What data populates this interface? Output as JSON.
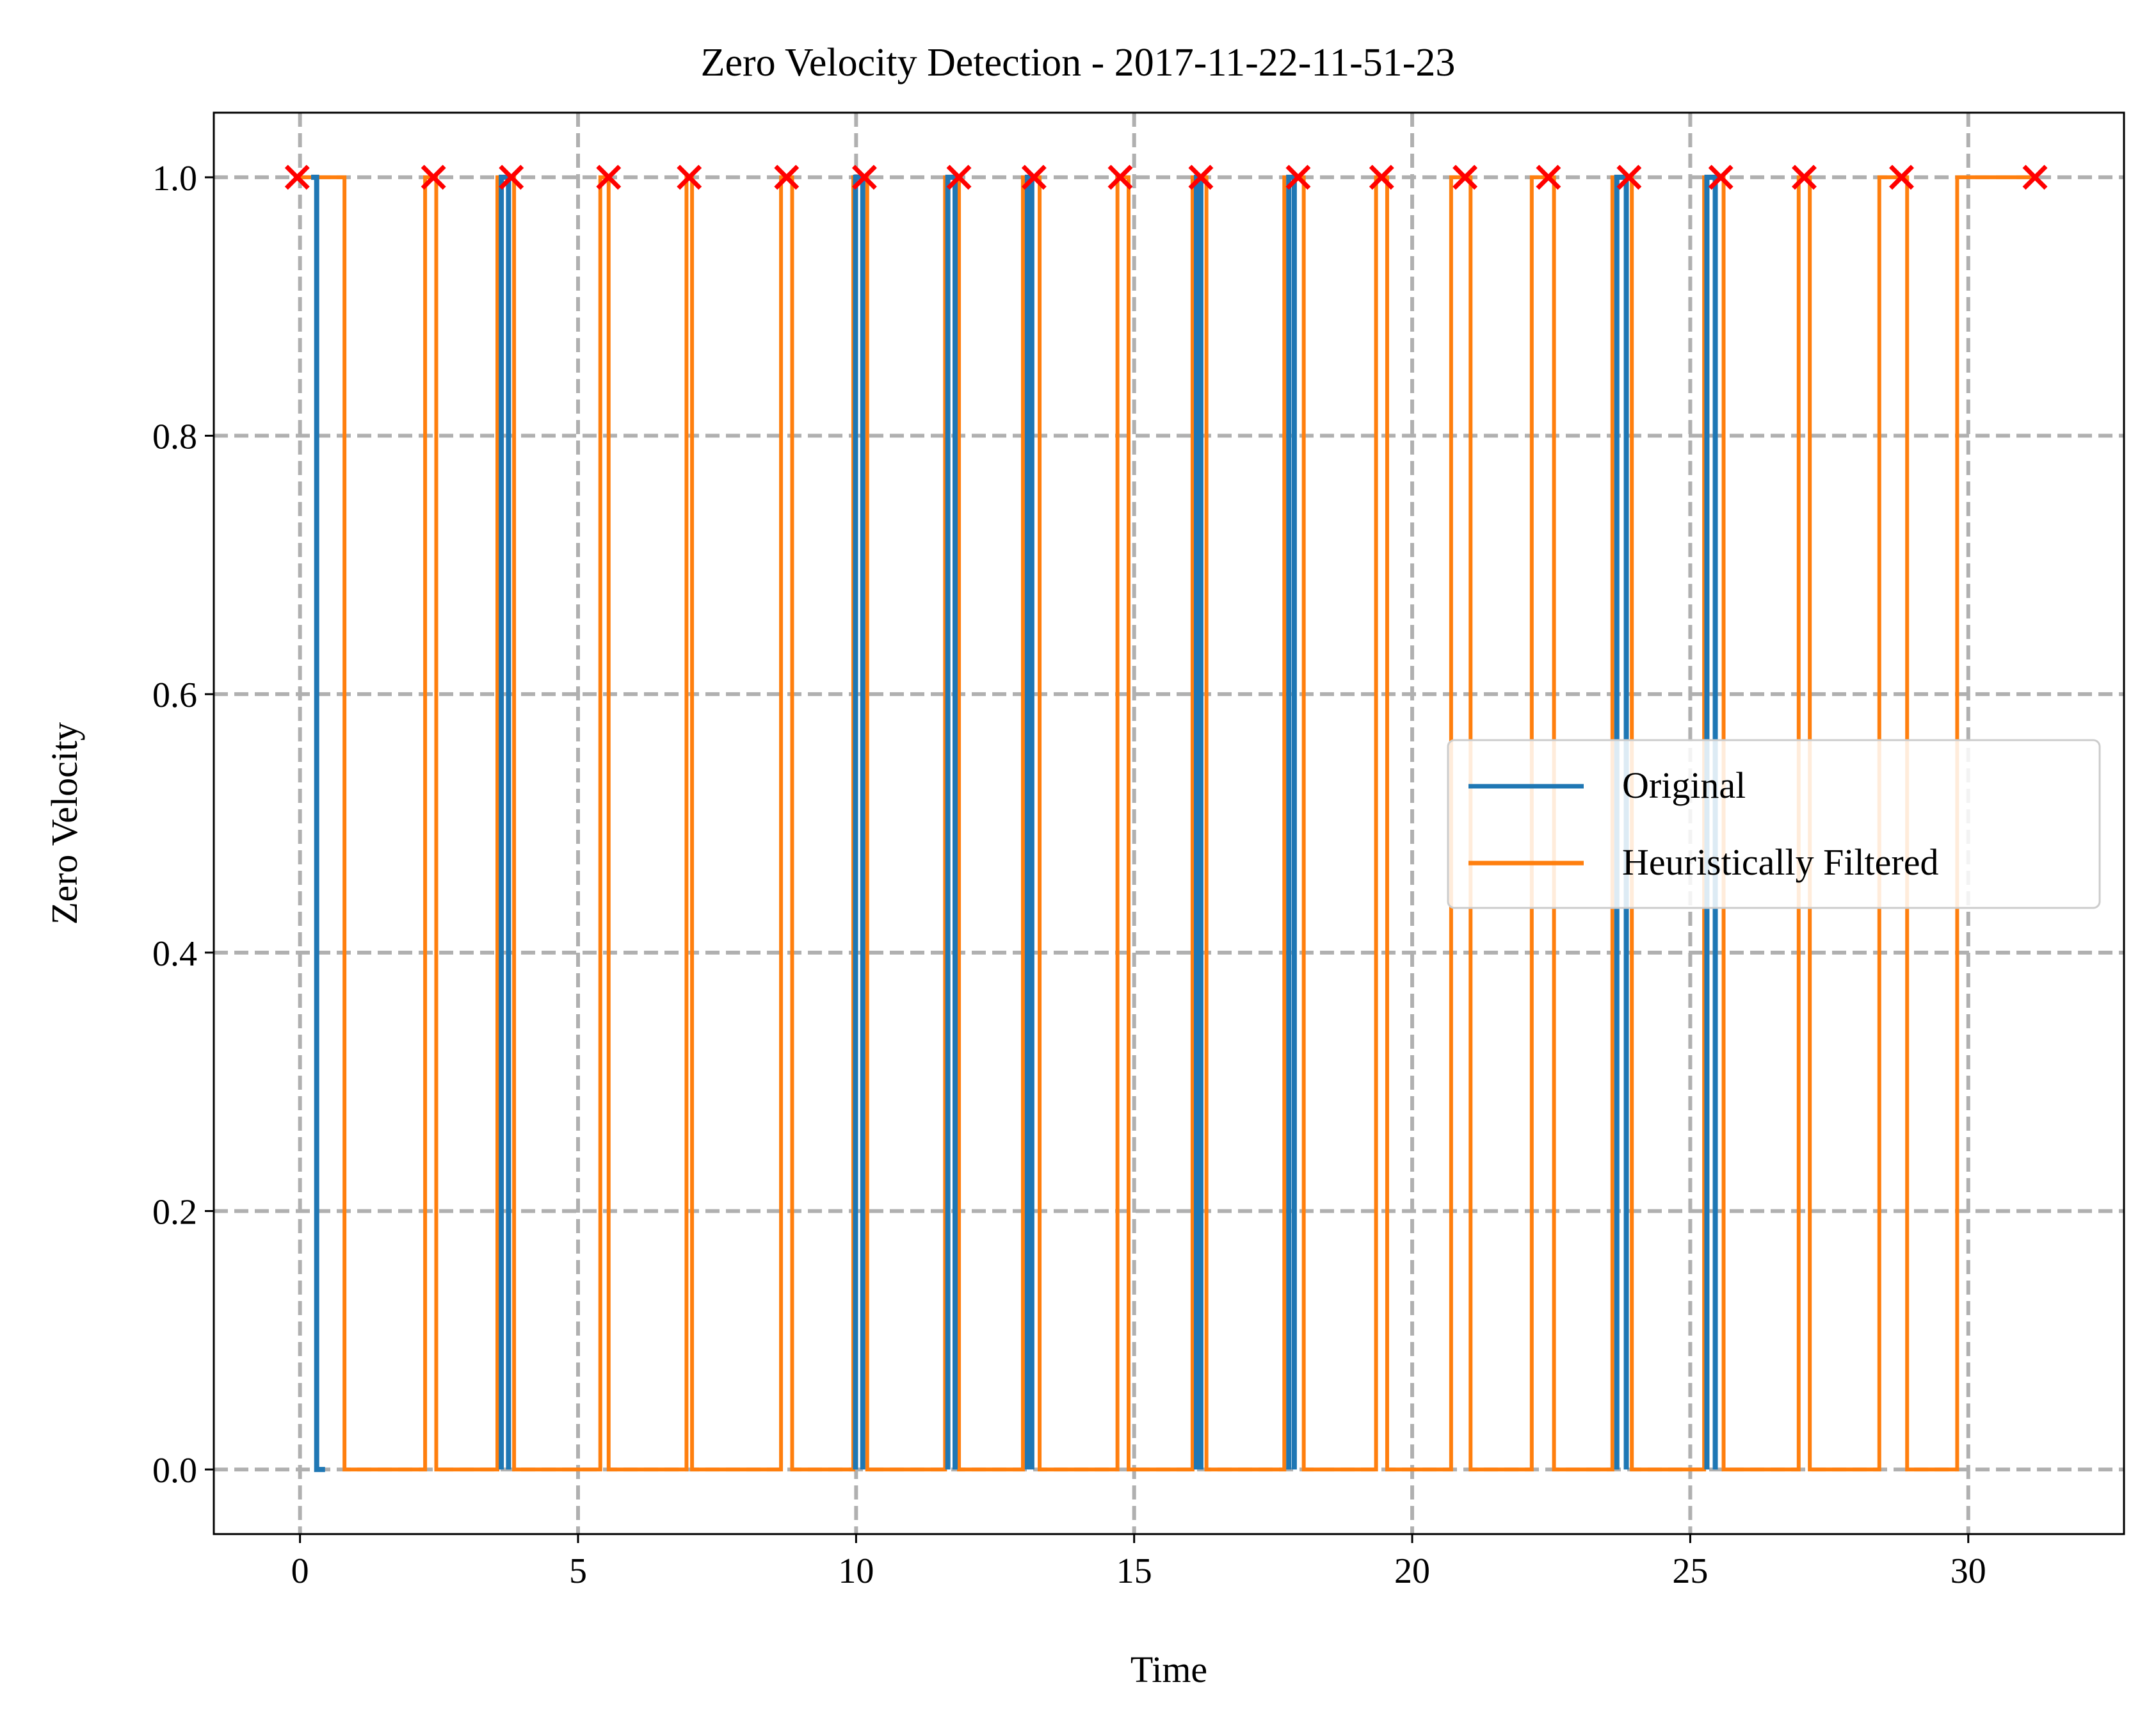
{
  "chart_data": {
    "type": "line",
    "title": "Zero Velocity Detection - 2017-11-22-11-51-23",
    "xlabel": "Time",
    "ylabel": "Zero Velocity",
    "xlim": [
      -1.55,
      32.8
    ],
    "ylim": [
      -0.05,
      1.05
    ],
    "xticks": [
      0,
      5,
      10,
      15,
      20,
      25,
      30
    ],
    "xtick_labels": [
      "0",
      "5",
      "10",
      "15",
      "20",
      "25",
      "30"
    ],
    "yticks": [
      0.0,
      0.2,
      0.4,
      0.6,
      0.8,
      1.0
    ],
    "ytick_labels": [
      "0.0",
      "0.2",
      "0.4",
      "0.6",
      "0.8",
      "1.0"
    ],
    "grid": true,
    "grid_style": "dashed",
    "legend_position": "center-right",
    "colors": {
      "original": "#1f77b4",
      "filtered": "#ff7f0e",
      "markers": "#ff0000",
      "grid": "#b0b0b0"
    },
    "series": [
      {
        "name": "Original",
        "step": true,
        "segments": [
          [
            [
              0.2,
              1
            ],
            [
              0.3,
              1
            ],
            [
              0.3,
              0
            ],
            [
              0.45,
              0
            ]
          ],
          [
            [
              3.62,
              0
            ],
            [
              3.62,
              1
            ],
            [
              3.75,
              1
            ],
            [
              3.75,
              0
            ]
          ],
          [
            [
              9.99,
              0
            ],
            [
              9.99,
              1
            ],
            [
              10.12,
              1
            ],
            [
              10.12,
              0
            ]
          ],
          [
            [
              11.65,
              0
            ],
            [
              11.65,
              1
            ],
            [
              11.78,
              1
            ],
            [
              11.78,
              0
            ]
          ],
          [
            [
              13.08,
              0
            ],
            [
              13.08,
              1
            ],
            [
              13.16,
              1
            ],
            [
              13.16,
              0
            ]
          ],
          [
            [
              16.12,
              0
            ],
            [
              16.12,
              1
            ],
            [
              16.2,
              1
            ],
            [
              16.2,
              0
            ]
          ],
          [
            [
              17.78,
              0
            ],
            [
              17.78,
              1
            ],
            [
              17.88,
              1
            ],
            [
              17.88,
              0
            ]
          ],
          [
            [
              23.68,
              0
            ],
            [
              23.68,
              1
            ],
            [
              23.85,
              1
            ],
            [
              23.85,
              0
            ]
          ],
          [
            [
              25.3,
              0
            ],
            [
              25.3,
              1
            ],
            [
              25.45,
              1
            ],
            [
              25.45,
              0
            ]
          ]
        ]
      },
      {
        "name": "Heuristically Filtered",
        "step": true,
        "pulses": [
          [
            0.0,
            0.8
          ],
          [
            2.25,
            2.45
          ],
          [
            3.55,
            3.85
          ],
          [
            5.4,
            5.55
          ],
          [
            6.95,
            7.05
          ],
          [
            8.65,
            8.85
          ],
          [
            9.95,
            10.2
          ],
          [
            11.6,
            11.85
          ],
          [
            13.0,
            13.3
          ],
          [
            14.7,
            14.9
          ],
          [
            16.05,
            16.3
          ],
          [
            17.7,
            18.05
          ],
          [
            19.35,
            19.55
          ],
          [
            20.7,
            21.05
          ],
          [
            22.15,
            22.55
          ],
          [
            23.6,
            23.95
          ],
          [
            25.25,
            25.6
          ],
          [
            26.95,
            27.15
          ],
          [
            28.4,
            28.9
          ],
          [
            29.8,
            31.2
          ]
        ]
      },
      {
        "name": "Step markers",
        "marker": "x",
        "x": [
          -0.05,
          2.4,
          3.8,
          5.55,
          7.0,
          8.75,
          10.15,
          11.85,
          13.2,
          14.75,
          16.2,
          17.95,
          19.45,
          20.95,
          22.45,
          23.9,
          25.55,
          27.05,
          28.8,
          31.2
        ],
        "y": 1
      }
    ]
  }
}
